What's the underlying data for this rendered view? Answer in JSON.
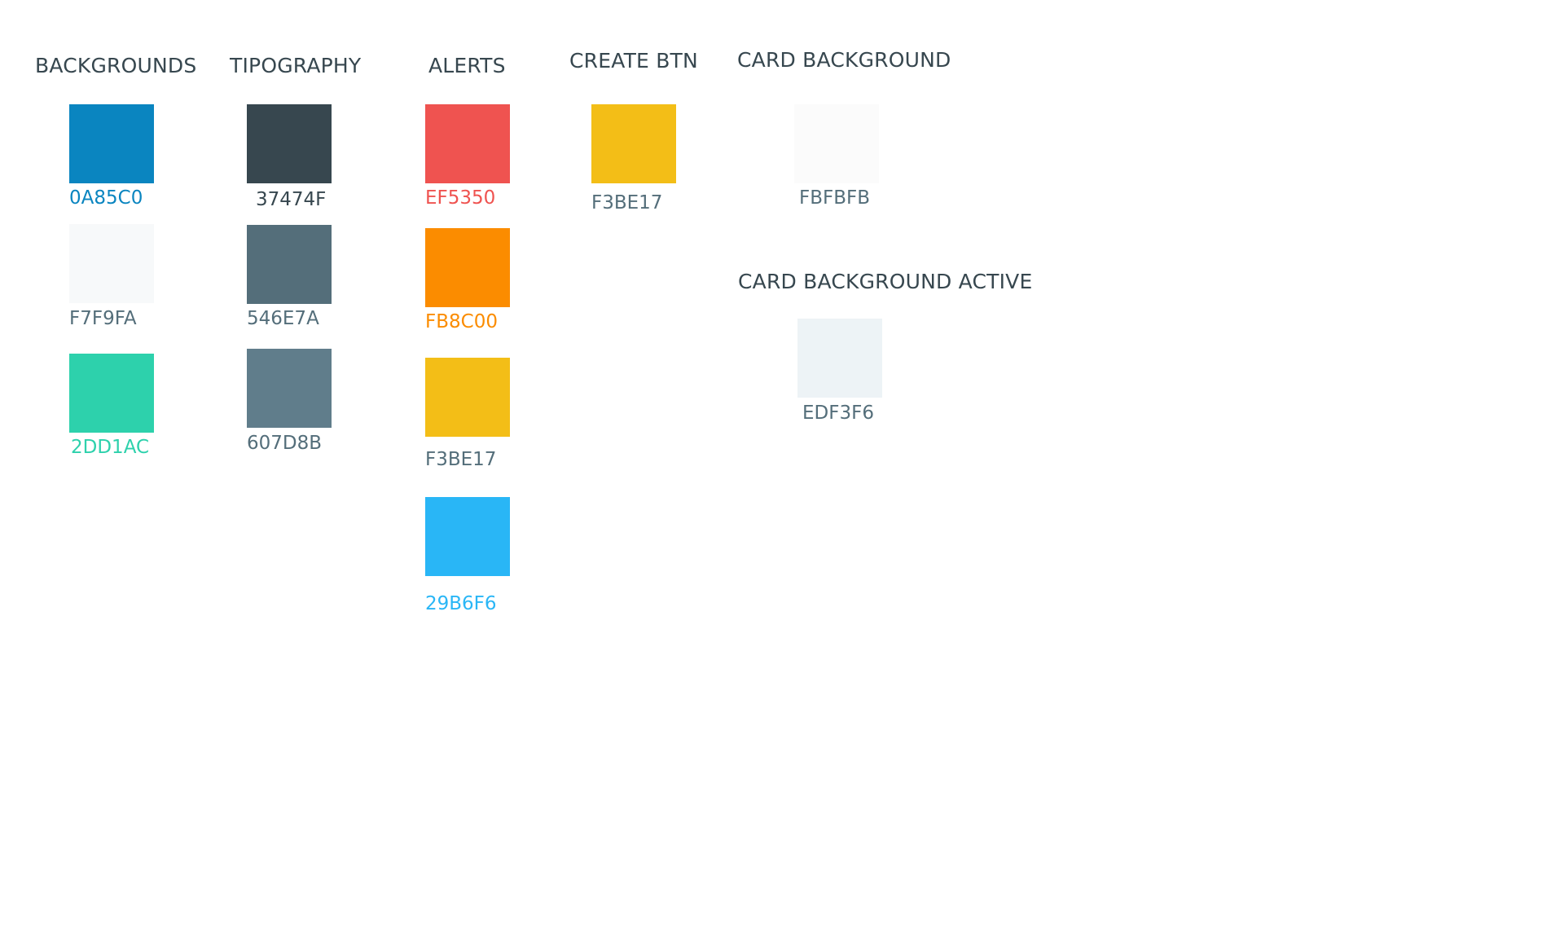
{
  "groups": {
    "backgrounds": {
      "title": "BACKGROUNDS",
      "swatches": [
        {
          "hex": "0A85C0",
          "color": "#0A85C0",
          "label_color": "#0A85C0"
        },
        {
          "hex": "F7F9FA",
          "color": "#F7F9FA",
          "label_color": "#546E7A"
        },
        {
          "hex": "2DD1AC",
          "color": "#2DD1AC",
          "label_color": "#2DD1AC"
        }
      ]
    },
    "typography": {
      "title": "TIPOGRAPHY",
      "swatches": [
        {
          "hex": "37474F",
          "color": "#37474F",
          "label_color": "#37474F"
        },
        {
          "hex": "546E7A",
          "color": "#546E7A",
          "label_color": "#546E7A"
        },
        {
          "hex": "607D8B",
          "color": "#607D8B",
          "label_color": "#546E7A"
        }
      ]
    },
    "alerts": {
      "title": "ALERTS",
      "swatches": [
        {
          "hex": "EF5350",
          "color": "#EF5350",
          "label_color": "#EF5350"
        },
        {
          "hex": "FB8C00",
          "color": "#FB8C00",
          "label_color": "#FB8C00"
        },
        {
          "hex": "F3BE17",
          "color": "#F3BE17",
          "label_color": "#546E7A"
        },
        {
          "hex": "29B6F6",
          "color": "#29B6F6",
          "label_color": "#29B6F6"
        }
      ]
    },
    "create_btn": {
      "title": "CREATE BTN",
      "swatches": [
        {
          "hex": "F3BE17",
          "color": "#F3BE17",
          "label_color": "#546E7A"
        }
      ]
    },
    "card_background": {
      "title": "CARD BACKGROUND",
      "swatches": [
        {
          "hex": "FBFBFB",
          "color": "#FBFBFB",
          "label_color": "#546E7A"
        }
      ]
    },
    "card_background_active": {
      "title": "CARD BACKGROUND ACTIVE",
      "swatches": [
        {
          "hex": "EDF3F6",
          "color": "#EDF3F6",
          "label_color": "#546E7A"
        }
      ]
    }
  }
}
